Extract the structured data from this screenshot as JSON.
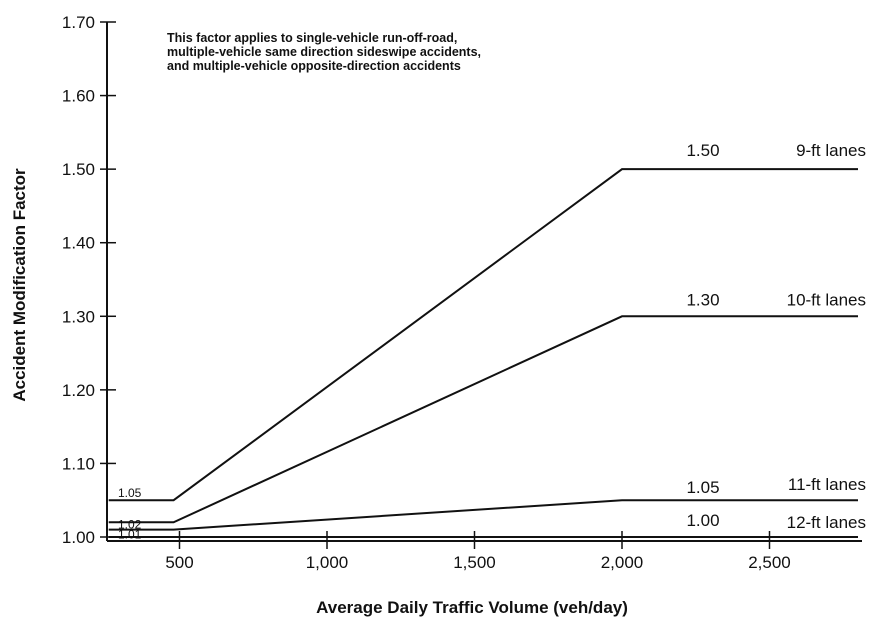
{
  "chart_data": {
    "type": "line",
    "ylabel": "Accident Modification Factor",
    "xlabel": "Average Daily Traffic Volume (veh/day)",
    "note": [
      "This factor applies to single-vehicle run-off-road,",
      "multiple-vehicle same direction sideswipe accidents,",
      "and multiple-vehicle opposite-direction accidents"
    ],
    "xlim": [
      260,
      2800
    ],
    "ylim": [
      1.0,
      1.7
    ],
    "x_ticks": [
      500,
      1000,
      1500,
      2000,
      2500
    ],
    "x_tick_labels": [
      "500",
      "1,000",
      "1,500",
      "2,000",
      "2,500"
    ],
    "y_ticks": [
      1.0,
      1.1,
      1.2,
      1.3,
      1.4,
      1.5,
      1.6,
      1.7
    ],
    "y_tick_labels": [
      "1.00",
      "1.10",
      "1.20",
      "1.30",
      "1.40",
      "1.50",
      "1.60",
      "1.70"
    ],
    "series": [
      {
        "name": "9-ft lanes",
        "points": [
          [
            260,
            1.05
          ],
          [
            480,
            1.05
          ],
          [
            2000,
            1.5
          ],
          [
            2800,
            1.5
          ]
        ],
        "start_label": "1.05",
        "end_value_label": "1.50"
      },
      {
        "name": "10-ft lanes",
        "points": [
          [
            260,
            1.02
          ],
          [
            480,
            1.02
          ],
          [
            2000,
            1.3
          ],
          [
            2800,
            1.3
          ]
        ],
        "start_label": "1.02",
        "end_value_label": "1.30"
      },
      {
        "name": "11-ft lanes",
        "points": [
          [
            260,
            1.01
          ],
          [
            480,
            1.01
          ],
          [
            2000,
            1.05
          ],
          [
            2800,
            1.05
          ]
        ],
        "start_label": "1.01",
        "end_value_label": "1.05"
      },
      {
        "name": "12-ft lanes",
        "points": [
          [
            260,
            1.0
          ],
          [
            2800,
            1.0
          ]
        ],
        "start_label": "",
        "end_value_label": "1.00"
      }
    ],
    "grid": false,
    "legend": "none"
  }
}
